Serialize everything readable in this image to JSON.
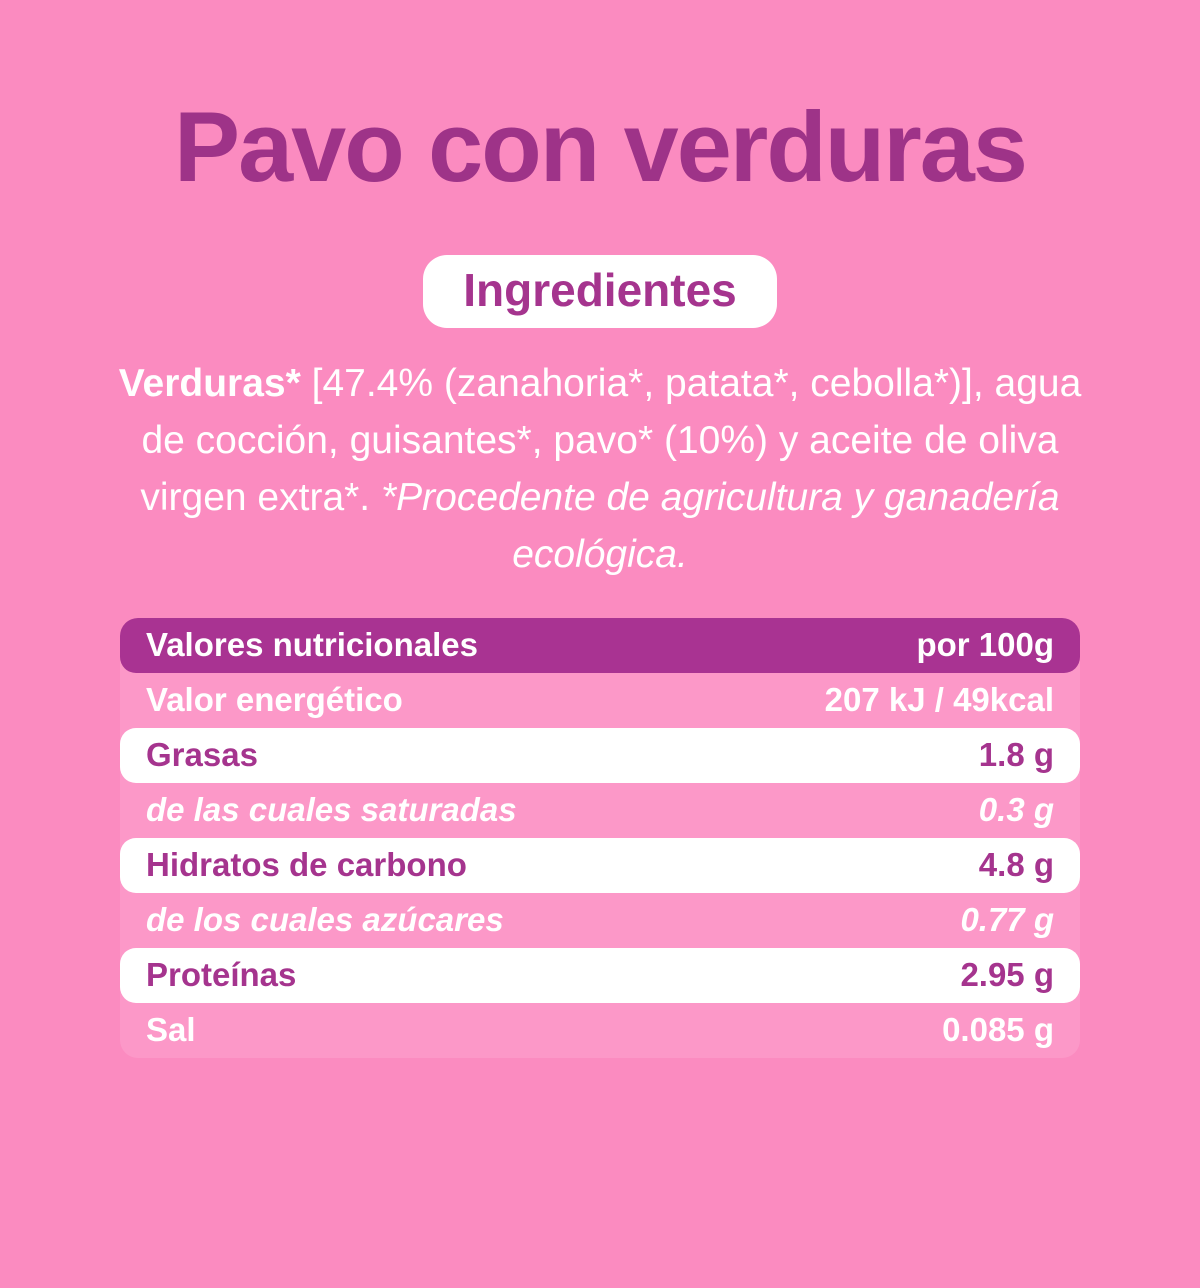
{
  "title": "Pavo con verduras",
  "ingredients": {
    "badge": "Ingredientes",
    "segments": [
      {
        "text": "Verduras*",
        "style": "bold"
      },
      {
        "text": " [47.4% (zanahoria*, patata*, cebolla*)], agua de cocción, guisantes*, pavo* (10%) y aceite de oliva virgen extra*. ",
        "style": "regular"
      },
      {
        "text": "*Procedente de agricultura y ganadería ecológica.",
        "style": "italic"
      }
    ]
  },
  "table": {
    "header": {
      "label": "Valores nutricionales",
      "value": "por 100g"
    },
    "rows": [
      {
        "label": "Valor energético",
        "value": "207 kJ / 49kcal",
        "style": "pink"
      },
      {
        "label": "Grasas",
        "value": "1.8 g",
        "style": "white"
      },
      {
        "label": "de las cuales saturadas",
        "value": "0.3 g",
        "style": "pink-italic"
      },
      {
        "label": "Hidratos de carbono",
        "value": "4.8 g",
        "style": "white"
      },
      {
        "label": "de los cuales azúcares",
        "value": "0.77 g",
        "style": "pink-italic"
      },
      {
        "label": "Proteínas",
        "value": "2.95 g",
        "style": "white"
      },
      {
        "label": "Sal",
        "value": "0.085 g",
        "style": "pink"
      }
    ]
  },
  "colors": {
    "background": "#fb8bc0",
    "table_background": "#fc98c8",
    "header_purple": "#a93392",
    "title_purple": "#9e3388",
    "row_text_purple": "#a5348e",
    "text_white": "#ffffff"
  }
}
